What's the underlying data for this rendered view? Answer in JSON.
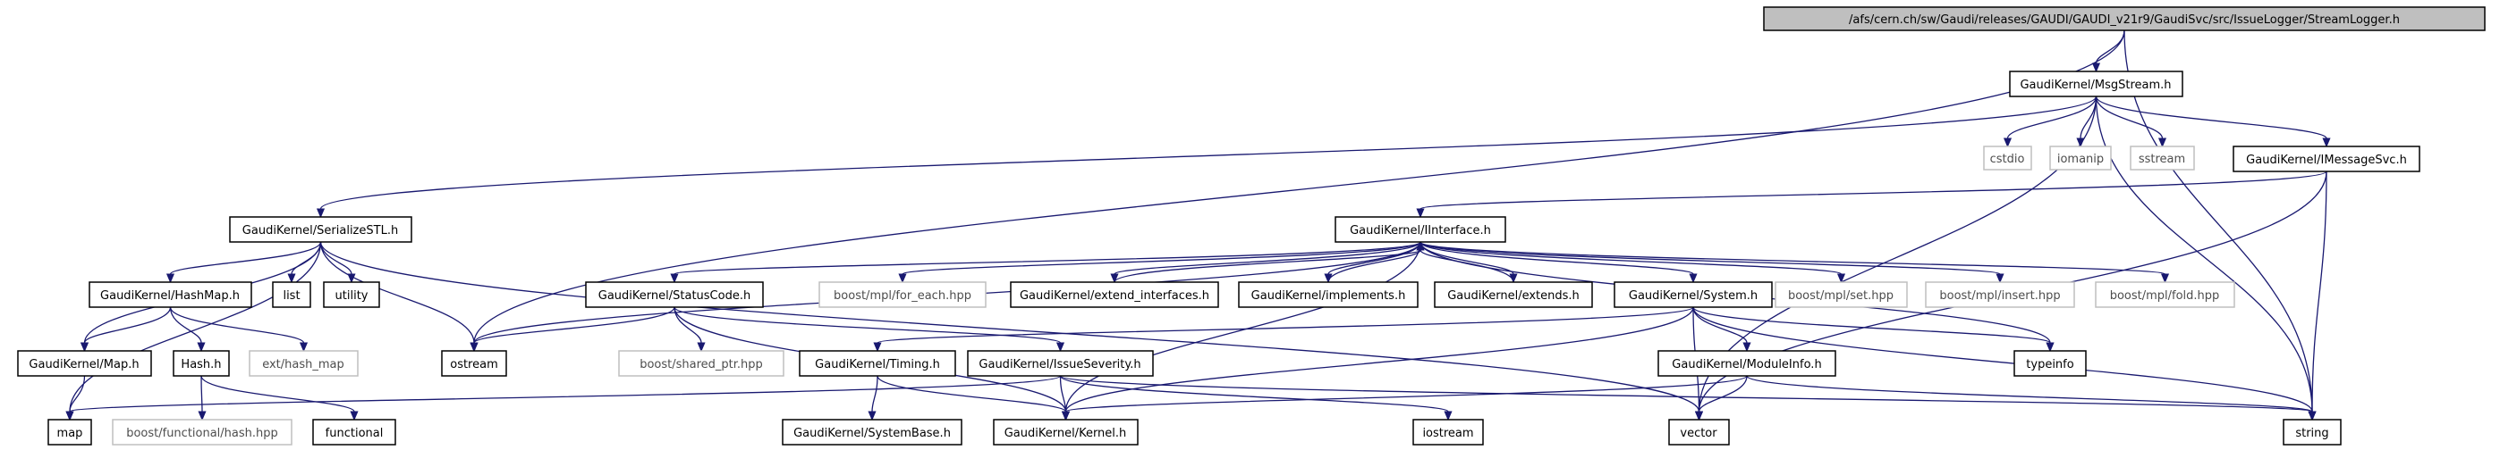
{
  "graph": {
    "nodes": {
      "root": {
        "label": "/afs/cern.ch/sw/Gaudi/releases/GAUDI/GAUDI_v21r9/GaudiSvc/src/IssueLogger/StreamLogger.h"
      },
      "msgstream": {
        "label": "GaudiKernel/MsgStream.h"
      },
      "cstdio": {
        "label": "cstdio"
      },
      "iomanip": {
        "label": "iomanip"
      },
      "sstream": {
        "label": "sstream"
      },
      "imsgsvc": {
        "label": "GaudiKernel/IMessageSvc.h"
      },
      "serialize": {
        "label": "GaudiKernel/SerializeSTL.h"
      },
      "iface": {
        "label": "GaudiKernel/IInterface.h"
      },
      "hashmap": {
        "label": "GaudiKernel/HashMap.h"
      },
      "list": {
        "label": "list"
      },
      "utility": {
        "label": "utility"
      },
      "statuscode": {
        "label": "GaudiKernel/StatusCode.h"
      },
      "mpl_foreach": {
        "label": "boost/mpl/for_each.hpp"
      },
      "extiface": {
        "label": "GaudiKernel/extend_interfaces.h"
      },
      "implements": {
        "label": "GaudiKernel/implements.h"
      },
      "extends": {
        "label": "GaudiKernel/extends.h"
      },
      "system": {
        "label": "GaudiKernel/System.h"
      },
      "mpl_set": {
        "label": "boost/mpl/set.hpp"
      },
      "mpl_insert": {
        "label": "boost/mpl/insert.hpp"
      },
      "mpl_fold": {
        "label": "boost/mpl/fold.hpp"
      },
      "gkmap": {
        "label": "GaudiKernel/Map.h"
      },
      "hashh": {
        "label": "Hash.h"
      },
      "ext_hash": {
        "label": "ext/hash_map"
      },
      "ostream": {
        "label": "ostream"
      },
      "shared_ptr": {
        "label": "boost/shared_ptr.hpp"
      },
      "timing": {
        "label": "GaudiKernel/Timing.h"
      },
      "severity": {
        "label": "GaudiKernel/IssueSeverity.h"
      },
      "moduleinfo": {
        "label": "GaudiKernel/ModuleInfo.h"
      },
      "typeinfo": {
        "label": "typeinfo"
      },
      "map": {
        "label": "map"
      },
      "bf_hash": {
        "label": "boost/functional/hash.hpp"
      },
      "functional": {
        "label": "functional"
      },
      "systembase": {
        "label": "GaudiKernel/SystemBase.h"
      },
      "kernel": {
        "label": "GaudiKernel/Kernel.h"
      },
      "iostream": {
        "label": "iostream"
      },
      "vector": {
        "label": "vector"
      },
      "string": {
        "label": "string"
      }
    },
    "edges": [
      [
        "root",
        "msgstream"
      ],
      [
        "root",
        "ostream"
      ],
      [
        "root",
        "string"
      ],
      [
        "msgstream",
        "cstdio"
      ],
      [
        "msgstream",
        "iomanip"
      ],
      [
        "msgstream",
        "sstream"
      ],
      [
        "msgstream",
        "imsgsvc"
      ],
      [
        "msgstream",
        "serialize"
      ],
      [
        "msgstream",
        "string"
      ],
      [
        "msgstream",
        "vector"
      ],
      [
        "imsgsvc",
        "iface"
      ],
      [
        "imsgsvc",
        "string"
      ],
      [
        "imsgsvc",
        "vector"
      ],
      [
        "serialize",
        "hashmap"
      ],
      [
        "serialize",
        "list"
      ],
      [
        "serialize",
        "utility"
      ],
      [
        "serialize",
        "ostream"
      ],
      [
        "serialize",
        "gkmap"
      ],
      [
        "serialize",
        "map"
      ],
      [
        "serialize",
        "vector"
      ],
      [
        "hashmap",
        "gkmap"
      ],
      [
        "hashmap",
        "hashh"
      ],
      [
        "hashmap",
        "ext_hash"
      ],
      [
        "gkmap",
        "map"
      ],
      [
        "hashh",
        "bf_hash"
      ],
      [
        "hashh",
        "functional"
      ],
      [
        "iface",
        "statuscode"
      ],
      [
        "iface",
        "mpl_foreach"
      ],
      [
        "iface",
        "extiface"
      ],
      [
        "iface",
        "implements"
      ],
      [
        "iface",
        "extends"
      ],
      [
        "iface",
        "system"
      ],
      [
        "iface",
        "mpl_set"
      ],
      [
        "iface",
        "mpl_insert"
      ],
      [
        "iface",
        "mpl_fold"
      ],
      [
        "iface",
        "typeinfo"
      ],
      [
        "iface",
        "ostream"
      ],
      [
        "iface",
        "kernel"
      ],
      [
        "extiface",
        "iface"
      ],
      [
        "implements",
        "iface"
      ],
      [
        "extends",
        "iface"
      ],
      [
        "statuscode",
        "ostream"
      ],
      [
        "statuscode",
        "shared_ptr"
      ],
      [
        "statuscode",
        "severity"
      ],
      [
        "statuscode",
        "kernel"
      ],
      [
        "system",
        "timing"
      ],
      [
        "system",
        "moduleinfo"
      ],
      [
        "system",
        "typeinfo"
      ],
      [
        "system",
        "kernel"
      ],
      [
        "system",
        "string"
      ],
      [
        "system",
        "vector"
      ],
      [
        "timing",
        "systembase"
      ],
      [
        "timing",
        "kernel"
      ],
      [
        "severity",
        "kernel"
      ],
      [
        "severity",
        "map"
      ],
      [
        "severity",
        "string"
      ],
      [
        "severity",
        "iostream"
      ],
      [
        "moduleinfo",
        "kernel"
      ],
      [
        "moduleinfo",
        "string"
      ],
      [
        "moduleinfo",
        "vector"
      ]
    ]
  }
}
